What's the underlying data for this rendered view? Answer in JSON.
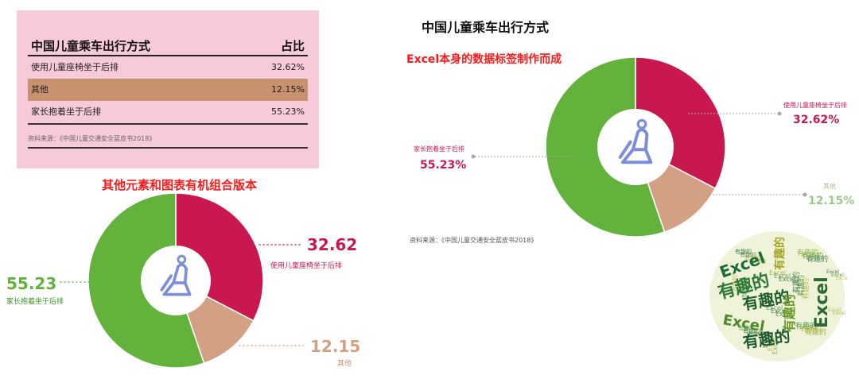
{
  "table": {
    "title": "中国儿童乘车出行方式",
    "value_header": "占比",
    "rows": [
      {
        "label": "使用儿童座椅坐于后排",
        "value": "32.62%"
      },
      {
        "label": "其他",
        "value": "12.15%"
      },
      {
        "label": "家长抱着坐于后排",
        "value": "55.23%"
      }
    ],
    "source": "资料来源：《中国儿童交通安全蓝皮书2018》"
  },
  "left": {
    "caption": "其他元素和图表有机组合版本"
  },
  "right": {
    "title": "中国儿童乘车出行方式",
    "subtitle": "Excel本身的数据标签制作而成",
    "source": "资料来源：《中国儿童交通安全蓝皮书2018》"
  },
  "colors": {
    "crimson": "#c8184f",
    "tan": "#d4a083",
    "green": "#62b23c",
    "icon": "#7a8fd8"
  },
  "wordcloud": {
    "words": [
      "Excel",
      "有趣的",
      "有趣的",
      "Excel",
      "有趣的",
      "Excel",
      "有趣的",
      "有趣的"
    ]
  },
  "chart_data": [
    {
      "type": "pie",
      "categories": [
        "使用儿童座椅坐于后排",
        "其他",
        "家长抱着坐于后排"
      ],
      "values": [
        32.62,
        12.15,
        55.23
      ],
      "value_labels": [
        "32.62",
        "12.15",
        "55.23"
      ],
      "donut": true
    },
    {
      "type": "pie",
      "title": "中国儿童乘车出行方式",
      "categories": [
        "使用儿童座椅坐于后排",
        "其他",
        "家长抱着坐于后排"
      ],
      "values": [
        32.62,
        12.15,
        55.23
      ],
      "value_labels": [
        "32.62%",
        "12.15%",
        "55.23%"
      ],
      "donut": true
    }
  ]
}
